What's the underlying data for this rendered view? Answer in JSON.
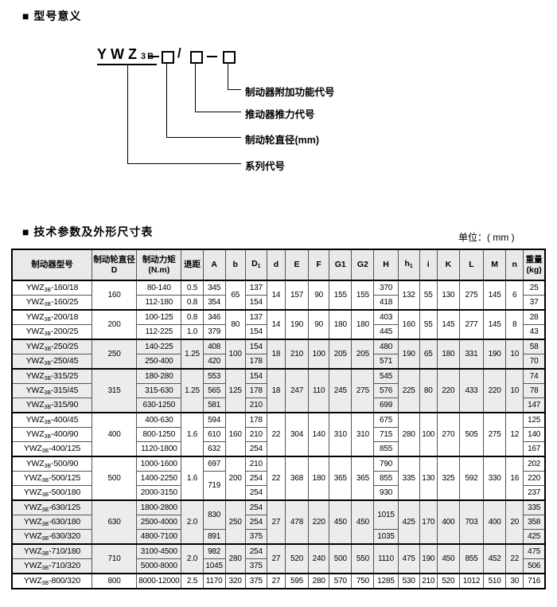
{
  "section1": {
    "title": "■ 型号意义"
  },
  "diagram": {
    "code_main": "YWZ",
    "code_sub": "3B",
    "labels": [
      "制动器附加功能代号",
      "推动器推力代号",
      "制动轮直径(mm)",
      "系列代号"
    ]
  },
  "section2": {
    "title": "■ 技术参数及外形尺寸表",
    "unit": "单位：( mm )"
  },
  "table": {
    "model_prefix": "YWZ",
    "model_sub": "3B",
    "headers": [
      {
        "t": "制动器型号"
      },
      {
        "l1": "制动轮直径",
        "l2": "D"
      },
      {
        "l1": "制动力矩",
        "l2": "(N.m)"
      },
      {
        "t": "退距"
      },
      {
        "t": "A"
      },
      {
        "t": "b"
      },
      {
        "t": "D",
        "sub": "1"
      },
      {
        "t": "d"
      },
      {
        "t": "E"
      },
      {
        "t": "F"
      },
      {
        "t": "G1"
      },
      {
        "t": "G2"
      },
      {
        "t": "H"
      },
      {
        "t": "h",
        "sub": "1"
      },
      {
        "t": "i"
      },
      {
        "t": "K"
      },
      {
        "t": "L"
      },
      {
        "t": "M"
      },
      {
        "t": "n"
      },
      {
        "l1": "重量",
        "l2": "(kg)"
      }
    ],
    "rows": [
      {
        "g": true,
        "s": false,
        "c": [
          {
            "m": "160/18"
          },
          {
            "t": "160",
            "rs": 2
          },
          "80-140",
          "0.5",
          "345",
          {
            "t": "65",
            "rs": 2
          },
          "137",
          {
            "t": "14",
            "rs": 2
          },
          {
            "t": "157",
            "rs": 2
          },
          {
            "t": "90",
            "rs": 2
          },
          {
            "t": "155",
            "rs": 2
          },
          {
            "t": "155",
            "rs": 2
          },
          "370",
          {
            "t": "132",
            "rs": 2
          },
          {
            "t": "55",
            "rs": 2
          },
          {
            "t": "130",
            "rs": 2
          },
          {
            "t": "275",
            "rs": 2
          },
          {
            "t": "145",
            "rs": 2
          },
          {
            "t": "6",
            "rs": 2
          },
          "25"
        ]
      },
      {
        "g": false,
        "s": false,
        "c": [
          {
            "m": "160/25"
          },
          "112-180",
          "0.8",
          "354",
          "154",
          "418",
          "37"
        ]
      },
      {
        "g": true,
        "s": false,
        "c": [
          {
            "m": "200/18"
          },
          {
            "t": "200",
            "rs": 2
          },
          "100-125",
          "0.8",
          "346",
          {
            "t": "80",
            "rs": 2
          },
          "137",
          {
            "t": "14",
            "rs": 2
          },
          {
            "t": "190",
            "rs": 2
          },
          {
            "t": "90",
            "rs": 2
          },
          {
            "t": "180",
            "rs": 2
          },
          {
            "t": "180",
            "rs": 2
          },
          "403",
          {
            "t": "160",
            "rs": 2
          },
          {
            "t": "55",
            "rs": 2
          },
          {
            "t": "145",
            "rs": 2
          },
          {
            "t": "277",
            "rs": 2
          },
          {
            "t": "145",
            "rs": 2
          },
          {
            "t": "8",
            "rs": 2
          },
          "28"
        ]
      },
      {
        "g": false,
        "s": false,
        "c": [
          {
            "m": "200/25"
          },
          "112-225",
          "1.0",
          "379",
          "154",
          "445",
          "43"
        ]
      },
      {
        "g": true,
        "s": true,
        "c": [
          {
            "m": "250/25"
          },
          {
            "t": "250",
            "rs": 2
          },
          "140-225",
          {
            "t": "1.25",
            "rs": 2
          },
          "408",
          {
            "t": "100",
            "rs": 2
          },
          "154",
          {
            "t": "18",
            "rs": 2
          },
          {
            "t": "210",
            "rs": 2
          },
          {
            "t": "100",
            "rs": 2
          },
          {
            "t": "205",
            "rs": 2
          },
          {
            "t": "205",
            "rs": 2
          },
          "480",
          {
            "t": "190",
            "rs": 2
          },
          {
            "t": "65",
            "rs": 2
          },
          {
            "t": "180",
            "rs": 2
          },
          {
            "t": "331",
            "rs": 2
          },
          {
            "t": "190",
            "rs": 2
          },
          {
            "t": "10",
            "rs": 2
          },
          "58"
        ]
      },
      {
        "g": false,
        "s": true,
        "c": [
          {
            "m": "250/45"
          },
          "250-400",
          "420",
          "178",
          "571",
          "70"
        ]
      },
      {
        "g": true,
        "s": true,
        "c": [
          {
            "m": "315/25"
          },
          {
            "t": "315",
            "rs": 3
          },
          "180-280",
          {
            "t": "1.25",
            "rs": 3
          },
          "553",
          {
            "t": "125",
            "rs": 3
          },
          "154",
          {
            "t": "18",
            "rs": 3
          },
          {
            "t": "247",
            "rs": 3
          },
          {
            "t": "110",
            "rs": 3
          },
          {
            "t": "245",
            "rs": 3
          },
          {
            "t": "275",
            "rs": 3
          },
          "545",
          {
            "t": "225",
            "rs": 3
          },
          {
            "t": "80",
            "rs": 3
          },
          {
            "t": "220",
            "rs": 3
          },
          {
            "t": "433",
            "rs": 3
          },
          {
            "t": "220",
            "rs": 3
          },
          {
            "t": "10",
            "rs": 3
          },
          "74"
        ]
      },
      {
        "g": false,
        "s": true,
        "c": [
          {
            "m": "315/45"
          },
          "315-630",
          "565",
          "178",
          "576",
          "78"
        ]
      },
      {
        "g": false,
        "s": true,
        "c": [
          {
            "m": "315/90"
          },
          "630-1250",
          "581",
          "210",
          "699",
          "147"
        ]
      },
      {
        "g": true,
        "s": false,
        "c": [
          {
            "m": "400/45"
          },
          {
            "t": "400",
            "rs": 3
          },
          "400-630",
          {
            "t": "1.6",
            "rs": 3
          },
          "594",
          {
            "t": "160",
            "rs": 3
          },
          "178",
          {
            "t": "22",
            "rs": 3
          },
          {
            "t": "304",
            "rs": 3
          },
          {
            "t": "140",
            "rs": 3
          },
          {
            "t": "310",
            "rs": 3
          },
          {
            "t": "310",
            "rs": 3
          },
          "675",
          {
            "t": "280",
            "rs": 3
          },
          {
            "t": "100",
            "rs": 3
          },
          {
            "t": "270",
            "rs": 3
          },
          {
            "t": "505",
            "rs": 3
          },
          {
            "t": "275",
            "rs": 3
          },
          {
            "t": "12",
            "rs": 3
          },
          "125"
        ]
      },
      {
        "g": false,
        "s": false,
        "c": [
          {
            "m": "400/90"
          },
          "800-1250",
          "610",
          "210",
          "715",
          "140"
        ]
      },
      {
        "g": false,
        "s": false,
        "c": [
          {
            "m": "400/125"
          },
          "1120-1800",
          "632",
          "254",
          "855",
          "167"
        ]
      },
      {
        "g": true,
        "s": false,
        "c": [
          {
            "m": "500/90"
          },
          {
            "t": "500",
            "rs": 3
          },
          "1000-1600",
          {
            "t": "1.6",
            "rs": 3
          },
          "697",
          {
            "t": "200",
            "rs": 3
          },
          "210",
          {
            "t": "22",
            "rs": 3
          },
          {
            "t": "368",
            "rs": 3
          },
          {
            "t": "180",
            "rs": 3
          },
          {
            "t": "365",
            "rs": 3
          },
          {
            "t": "365",
            "rs": 3
          },
          "790",
          {
            "t": "335",
            "rs": 3
          },
          {
            "t": "130",
            "rs": 3
          },
          {
            "t": "325",
            "rs": 3
          },
          {
            "t": "592",
            "rs": 3
          },
          {
            "t": "330",
            "rs": 3
          },
          {
            "t": "16",
            "rs": 3
          },
          "202"
        ]
      },
      {
        "g": false,
        "s": false,
        "c": [
          {
            "m": "500/125"
          },
          "1400-2250",
          {
            "t": "719",
            "rs": 2
          },
          "254",
          "855",
          "220"
        ]
      },
      {
        "g": false,
        "s": false,
        "c": [
          {
            "m": "500/180"
          },
          "2000-3150",
          "254",
          "930",
          "237"
        ]
      },
      {
        "g": true,
        "s": true,
        "c": [
          {
            "m": "630/125"
          },
          {
            "t": "630",
            "rs": 3
          },
          "1800-2800",
          {
            "t": "2.0",
            "rs": 3
          },
          {
            "t": "830",
            "rs": 2
          },
          {
            "t": "250",
            "rs": 3
          },
          "254",
          {
            "t": "27",
            "rs": 3
          },
          {
            "t": "478",
            "rs": 3
          },
          {
            "t": "220",
            "rs": 3
          },
          {
            "t": "450",
            "rs": 3
          },
          {
            "t": "450",
            "rs": 3
          },
          {
            "t": "1015",
            "rs": 2
          },
          {
            "t": "425",
            "rs": 3
          },
          {
            "t": "170",
            "rs": 3
          },
          {
            "t": "400",
            "rs": 3
          },
          {
            "t": "703",
            "rs": 3
          },
          {
            "t": "400",
            "rs": 3
          },
          {
            "t": "20",
            "rs": 3
          },
          "335"
        ]
      },
      {
        "g": false,
        "s": true,
        "c": [
          {
            "m": "630/180"
          },
          "2500-4000",
          "254",
          "358"
        ]
      },
      {
        "g": false,
        "s": true,
        "c": [
          {
            "m": "630/320"
          },
          "4800-7100",
          "891",
          "375",
          "1035",
          "425"
        ]
      },
      {
        "g": true,
        "s": true,
        "c": [
          {
            "m": "710/180"
          },
          {
            "t": "710",
            "rs": 2
          },
          "3100-4500",
          {
            "t": "2.0",
            "rs": 2
          },
          "982",
          {
            "t": "280",
            "rs": 2
          },
          "254",
          {
            "t": "27",
            "rs": 2
          },
          {
            "t": "520",
            "rs": 2
          },
          {
            "t": "240",
            "rs": 2
          },
          {
            "t": "500",
            "rs": 2
          },
          {
            "t": "550",
            "rs": 2
          },
          {
            "t": "1110",
            "rs": 2
          },
          {
            "t": "475",
            "rs": 2
          },
          {
            "t": "190",
            "rs": 2
          },
          {
            "t": "450",
            "rs": 2
          },
          {
            "t": "855",
            "rs": 2
          },
          {
            "t": "452",
            "rs": 2
          },
          {
            "t": "22",
            "rs": 2
          },
          "475"
        ]
      },
      {
        "g": false,
        "s": true,
        "c": [
          {
            "m": "710/320"
          },
          "5000-8000",
          "1045",
          "375",
          "506"
        ]
      },
      {
        "g": true,
        "s": false,
        "c": [
          {
            "m": "800/320"
          },
          "800",
          "8000-12000",
          "2.5",
          "1170",
          "320",
          "375",
          "27",
          "595",
          "280",
          "570",
          "750",
          "1285",
          "530",
          "210",
          "520",
          "1012",
          "510",
          "30",
          "716"
        ]
      }
    ]
  }
}
